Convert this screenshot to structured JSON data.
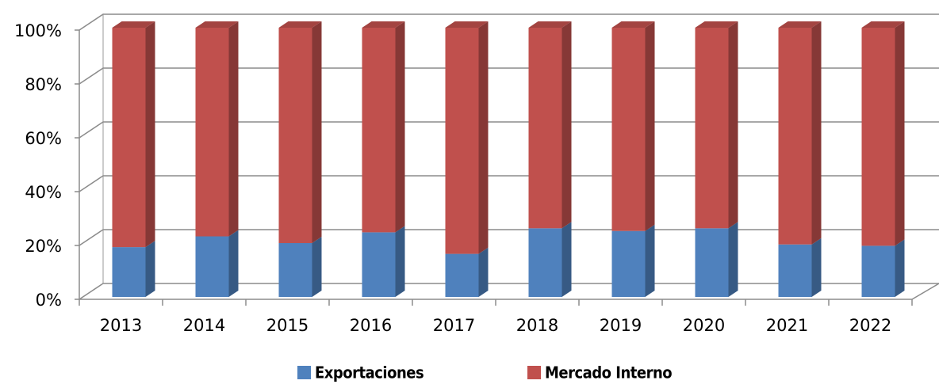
{
  "chart_data": {
    "type": "bar",
    "stacked": true,
    "categories": [
      "2013",
      "2014",
      "2015",
      "2016",
      "2017",
      "2018",
      "2019",
      "2020",
      "2021",
      "2022"
    ],
    "series": [
      {
        "name": "Exportaciones",
        "color": "#4f81bd",
        "values": [
          18.5,
          22.5,
          20,
          24,
          16,
          25.5,
          24.5,
          25.5,
          19.5,
          19
        ]
      },
      {
        "name": "Mercado Interno",
        "color": "#c0504d",
        "values": [
          81.5,
          77.5,
          80,
          76,
          84,
          74.5,
          75.5,
          74.5,
          80.5,
          81
        ]
      }
    ],
    "ylim": [
      0,
      100
    ],
    "yticks": [
      {
        "value": 0,
        "label": "0%"
      },
      {
        "value": 20,
        "label": "20%"
      },
      {
        "value": 40,
        "label": "40%"
      },
      {
        "value": 60,
        "label": "60%"
      },
      {
        "value": 80,
        "label": "80%"
      },
      {
        "value": 100,
        "label": "100%"
      }
    ],
    "grid": true
  }
}
